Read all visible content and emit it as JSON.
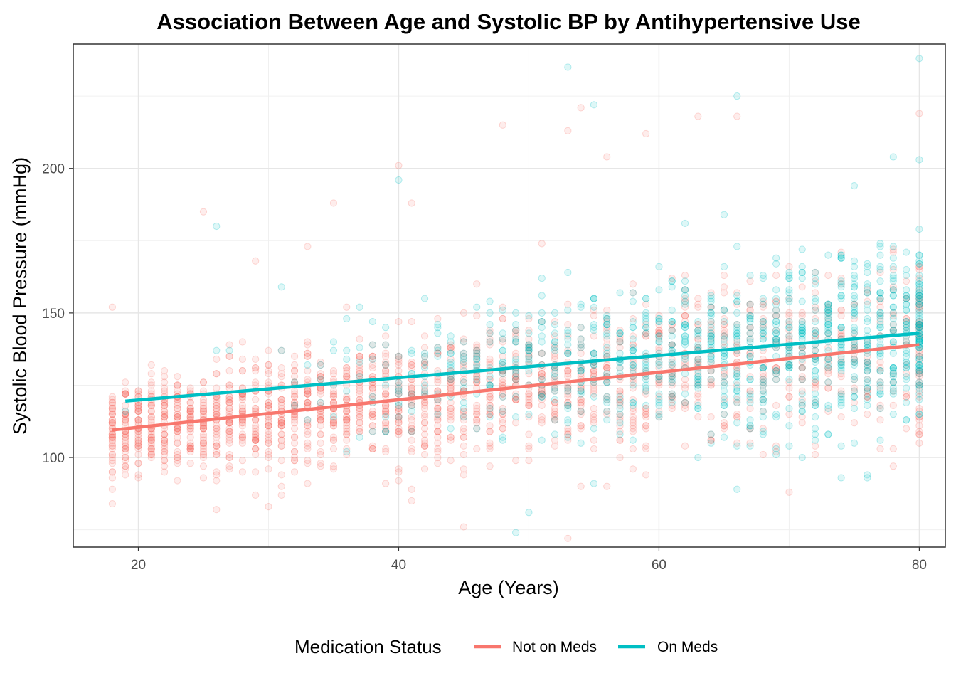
{
  "chart_data": {
    "type": "scatter",
    "title": "Association Between Age and Systolic BP by Antihypertensive Use",
    "xlabel": "Age (Years)",
    "ylabel": "Systolic Blood Pressure (mmHg)",
    "xlim": [
      15,
      82
    ],
    "ylim": [
      69,
      243
    ],
    "x_ticks": [
      20,
      40,
      60,
      80
    ],
    "y_ticks": [
      100,
      150,
      200
    ],
    "grid": true,
    "legend": {
      "title": "Medication Status",
      "position": "bottom",
      "entries": [
        "Not on Meds",
        "On Meds"
      ]
    },
    "series": [
      {
        "name": "Not on Meds",
        "color": "#F8766D",
        "fit_line": {
          "x": [
            18,
            80
          ],
          "y": [
            109.5,
            139.0
          ]
        },
        "points": {
          "age_range": [
            18,
            80
          ],
          "density_note": "dense at young ages, fewer at older ages",
          "sample": [
            [
              18,
              152
            ],
            [
              18,
              84
            ],
            [
              25,
              185
            ],
            [
              29,
              168
            ],
            [
              33,
              173
            ],
            [
              35,
              188
            ],
            [
              40,
              201
            ],
            [
              41,
              188
            ],
            [
              48,
              215
            ],
            [
              51,
              174
            ],
            [
              53,
              213
            ],
            [
              54,
              221
            ],
            [
              56,
              204
            ],
            [
              59,
              212
            ],
            [
              63,
              218
            ],
            [
              66,
              218
            ],
            [
              80,
              219
            ],
            [
              53,
              72
            ],
            [
              41,
              85
            ],
            [
              31,
              87
            ],
            [
              70,
              88
            ]
          ]
        }
      },
      {
        "name": "On Meds",
        "color": "#00BFC4",
        "fit_line": {
          "x": [
            19,
            80
          ],
          "y": [
            119.5,
            143.0
          ]
        },
        "points": {
          "age_range": [
            19,
            80
          ],
          "density_note": "sparse at young ages, dense at older ages",
          "sample": [
            [
              26,
              180
            ],
            [
              31,
              159
            ],
            [
              40,
              196
            ],
            [
              53,
              235
            ],
            [
              55,
              222
            ],
            [
              66,
              225
            ],
            [
              80,
              238
            ],
            [
              80,
              203
            ],
            [
              78,
              204
            ],
            [
              49,
              74
            ],
            [
              50,
              81
            ],
            [
              74,
              93
            ],
            [
              76,
              94
            ],
            [
              66,
              89
            ]
          ]
        }
      }
    ]
  }
}
